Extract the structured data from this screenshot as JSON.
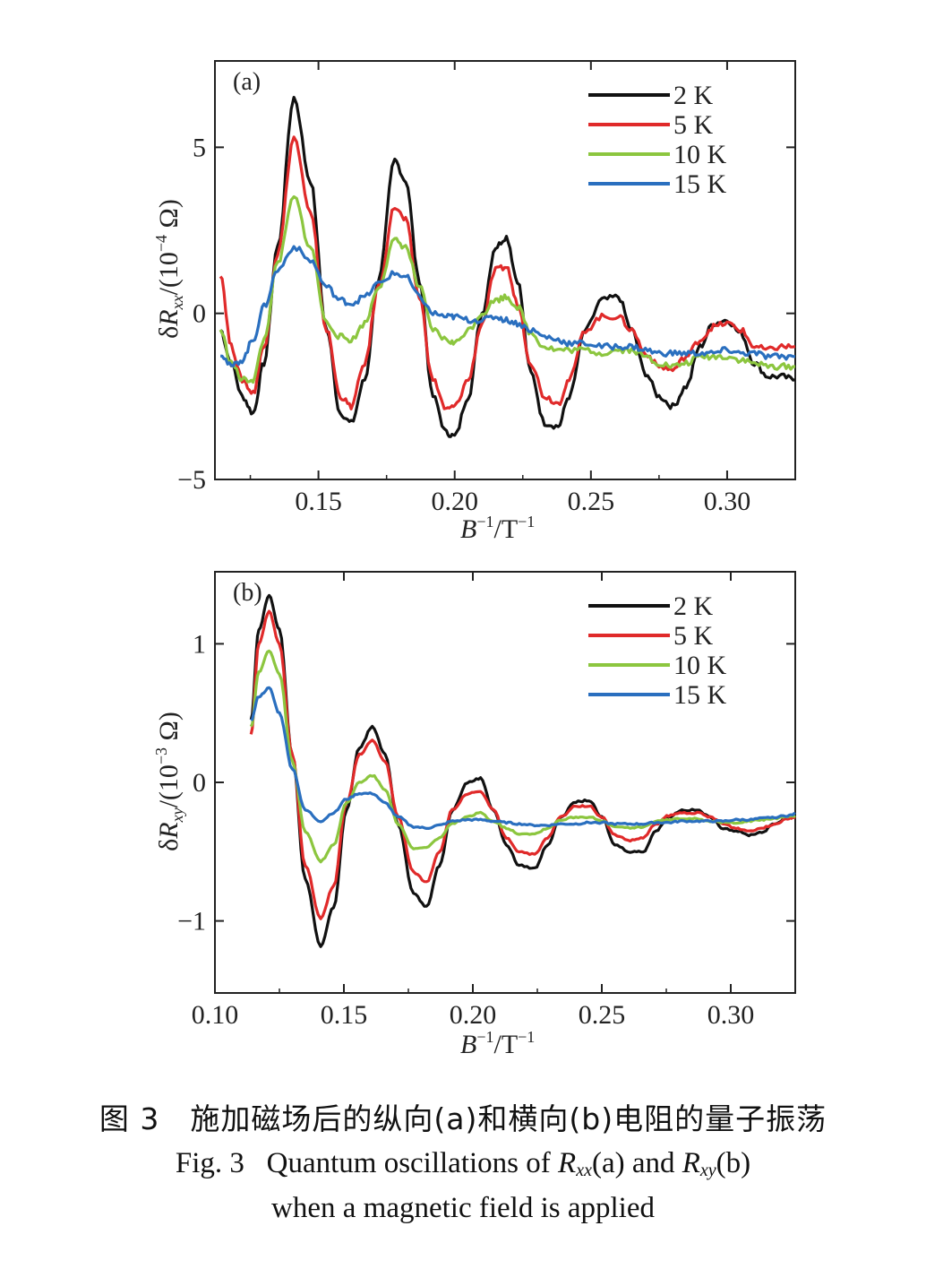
{
  "chart_data": [
    {
      "panel": "(a)",
      "type": "line",
      "xlabel_base": "B",
      "xlabel_sup": "−1",
      "xlabel_unit": "T",
      "xlabel_unit_sup": "−1",
      "ylabel_prefix": "δR",
      "ylabel_sub": "xx",
      "ylabel_suffix": "/(10",
      "ylabel_exp": "−4",
      "ylabel_unit": " Ω)",
      "xlim": [
        0.112,
        0.325
      ],
      "ylim": [
        -5,
        7.6
      ],
      "xticks": [
        0.15,
        0.2,
        0.25,
        0.3
      ],
      "xtick_labels": [
        "0.15",
        "0.20",
        "0.25",
        "0.30"
      ],
      "yticks": [
        -5,
        0,
        5
      ],
      "ytick_labels": [
        "−5",
        "0",
        "5"
      ],
      "legend_position": "top-right",
      "series": [
        {
          "name": "2 K",
          "color": "#111111",
          "x": [
            0.114,
            0.118,
            0.122,
            0.126,
            0.13,
            0.135,
            0.141,
            0.147,
            0.153,
            0.158,
            0.162,
            0.167,
            0.172,
            0.178,
            0.182,
            0.187,
            0.192,
            0.197,
            0.2,
            0.205,
            0.21,
            0.215,
            0.219,
            0.223,
            0.228,
            0.233,
            0.238,
            0.242,
            0.248,
            0.254,
            0.26,
            0.265,
            0.27,
            0.275,
            0.28,
            0.285,
            0.29,
            0.295,
            0.3,
            0.305,
            0.31,
            0.315,
            0.32,
            0.325
          ],
          "y": [
            -0.5,
            -1.5,
            -2.5,
            -3.0,
            -1.5,
            2.0,
            6.5,
            4.0,
            -0.5,
            -3.0,
            -3.3,
            -2.0,
            1.0,
            4.6,
            4.0,
            1.0,
            -2.5,
            -3.6,
            -3.7,
            -2.5,
            0.0,
            2.0,
            2.3,
            1.0,
            -1.8,
            -3.3,
            -3.4,
            -2.5,
            -0.5,
            0.4,
            0.5,
            -0.5,
            -1.8,
            -2.5,
            -2.8,
            -2.2,
            -1.0,
            -0.3,
            -0.2,
            -0.6,
            -1.5,
            -1.9,
            -1.9,
            -2.0
          ]
        },
        {
          "name": "5 K",
          "color": "#e02a2a",
          "x": [
            0.114,
            0.118,
            0.122,
            0.126,
            0.13,
            0.135,
            0.141,
            0.147,
            0.153,
            0.158,
            0.162,
            0.167,
            0.172,
            0.178,
            0.182,
            0.187,
            0.192,
            0.197,
            0.2,
            0.205,
            0.21,
            0.215,
            0.219,
            0.223,
            0.228,
            0.233,
            0.238,
            0.242,
            0.248,
            0.254,
            0.26,
            0.265,
            0.27,
            0.275,
            0.28,
            0.285,
            0.29,
            0.295,
            0.3,
            0.305,
            0.31,
            0.315,
            0.32,
            0.325
          ],
          "y": [
            1.2,
            -1.0,
            -2.0,
            -2.4,
            -1.0,
            1.8,
            5.3,
            3.0,
            -0.5,
            -2.5,
            -2.8,
            -1.5,
            0.8,
            3.2,
            2.8,
            0.5,
            -2.0,
            -2.9,
            -2.8,
            -2.0,
            -0.3,
            1.3,
            1.4,
            0.3,
            -1.5,
            -2.5,
            -2.7,
            -2.0,
            -0.5,
            -0.1,
            -0.1,
            -0.5,
            -1.2,
            -1.6,
            -1.7,
            -1.3,
            -0.8,
            -0.4,
            -0.3,
            -0.5,
            -1.0,
            -1.1,
            -1.0,
            -1.0
          ]
        },
        {
          "name": "10 K",
          "color": "#8cc63f",
          "x": [
            0.114,
            0.118,
            0.122,
            0.126,
            0.13,
            0.135,
            0.141,
            0.147,
            0.153,
            0.158,
            0.162,
            0.167,
            0.172,
            0.178,
            0.182,
            0.187,
            0.192,
            0.197,
            0.2,
            0.205,
            0.21,
            0.215,
            0.219,
            0.223,
            0.228,
            0.233,
            0.238,
            0.242,
            0.248,
            0.254,
            0.26,
            0.265,
            0.27,
            0.275,
            0.28,
            0.285,
            0.29,
            0.295,
            0.3,
            0.305,
            0.31,
            0.315,
            0.32,
            0.325
          ],
          "y": [
            -0.5,
            -1.5,
            -2.0,
            -2.0,
            -0.8,
            1.5,
            3.5,
            2.0,
            -0.3,
            -0.7,
            -0.8,
            -0.3,
            0.8,
            2.2,
            2.0,
            0.8,
            -0.5,
            -0.8,
            -0.9,
            -0.5,
            0.0,
            0.4,
            0.5,
            0.2,
            -0.6,
            -1.0,
            -1.1,
            -1.1,
            -1.1,
            -1.2,
            -1.1,
            -1.1,
            -1.3,
            -1.5,
            -1.6,
            -1.5,
            -1.3,
            -1.3,
            -1.3,
            -1.4,
            -1.5,
            -1.6,
            -1.6,
            -1.6
          ]
        },
        {
          "name": "15 K",
          "color": "#2a6fbf",
          "x": [
            0.114,
            0.118,
            0.122,
            0.126,
            0.13,
            0.135,
            0.141,
            0.147,
            0.153,
            0.158,
            0.162,
            0.167,
            0.172,
            0.178,
            0.182,
            0.187,
            0.192,
            0.197,
            0.2,
            0.205,
            0.21,
            0.215,
            0.219,
            0.223,
            0.228,
            0.233,
            0.238,
            0.242,
            0.248,
            0.254,
            0.26,
            0.265,
            0.27,
            0.275,
            0.28,
            0.285,
            0.29,
            0.295,
            0.3,
            0.305,
            0.31,
            0.315,
            0.32,
            0.325
          ],
          "y": [
            -1.2,
            -1.6,
            -1.4,
            -0.8,
            0.2,
            1.3,
            2.0,
            1.6,
            0.8,
            0.4,
            0.3,
            0.5,
            0.9,
            1.2,
            1.1,
            0.5,
            0.0,
            -0.1,
            -0.1,
            -0.2,
            -0.2,
            -0.1,
            -0.2,
            -0.3,
            -0.5,
            -0.7,
            -0.8,
            -0.9,
            -0.9,
            -1.0,
            -1.0,
            -1.0,
            -1.1,
            -1.2,
            -1.2,
            -1.2,
            -1.2,
            -1.2,
            -1.1,
            -1.2,
            -1.2,
            -1.3,
            -1.3,
            -1.3
          ]
        }
      ]
    },
    {
      "panel": "(b)",
      "type": "line",
      "xlabel_base": "B",
      "xlabel_sup": "−1",
      "xlabel_unit": "T",
      "xlabel_unit_sup": "−1",
      "ylabel_prefix": "δR",
      "ylabel_sub": "xy",
      "ylabel_suffix": "/(10",
      "ylabel_exp": "−3",
      "ylabel_unit": " Ω)",
      "xlim": [
        0.1,
        0.325
      ],
      "ylim": [
        -1.52,
        1.52
      ],
      "xticks": [
        0.1,
        0.15,
        0.2,
        0.25,
        0.3
      ],
      "xtick_labels": [
        "0.10",
        "0.15",
        "0.20",
        "0.25",
        "0.30"
      ],
      "yticks": [
        -1,
        0,
        1
      ],
      "ytick_labels": [
        "−1",
        "0",
        "1"
      ],
      "legend_position": "top-right",
      "series": [
        {
          "name": "2 K",
          "color": "#111111",
          "x": [
            0.114,
            0.117,
            0.121,
            0.125,
            0.13,
            0.135,
            0.141,
            0.146,
            0.151,
            0.156,
            0.161,
            0.166,
            0.171,
            0.177,
            0.182,
            0.187,
            0.192,
            0.198,
            0.203,
            0.208,
            0.213,
            0.218,
            0.224,
            0.229,
            0.234,
            0.24,
            0.245,
            0.25,
            0.255,
            0.261,
            0.266,
            0.271,
            0.276,
            0.281,
            0.287,
            0.292,
            0.297,
            0.302,
            0.307,
            0.312,
            0.317,
            0.322,
            0.325
          ],
          "y": [
            0.45,
            1.1,
            1.35,
            1.1,
            0.2,
            -0.7,
            -1.18,
            -0.9,
            -0.2,
            0.25,
            0.4,
            0.2,
            -0.3,
            -0.8,
            -0.9,
            -0.6,
            -0.2,
            0.0,
            0.03,
            -0.2,
            -0.45,
            -0.6,
            -0.62,
            -0.45,
            -0.25,
            -0.14,
            -0.13,
            -0.25,
            -0.45,
            -0.5,
            -0.5,
            -0.35,
            -0.25,
            -0.2,
            -0.2,
            -0.25,
            -0.33,
            -0.35,
            -0.38,
            -0.36,
            -0.3,
            -0.25,
            -0.25
          ]
        },
        {
          "name": "5 K",
          "color": "#e02a2a",
          "x": [
            0.114,
            0.117,
            0.121,
            0.125,
            0.13,
            0.135,
            0.141,
            0.146,
            0.151,
            0.156,
            0.161,
            0.166,
            0.171,
            0.177,
            0.182,
            0.187,
            0.192,
            0.198,
            0.203,
            0.208,
            0.213,
            0.218,
            0.224,
            0.229,
            0.234,
            0.24,
            0.245,
            0.25,
            0.255,
            0.261,
            0.266,
            0.271,
            0.276,
            0.281,
            0.287,
            0.292,
            0.297,
            0.302,
            0.307,
            0.312,
            0.317,
            0.322,
            0.325
          ],
          "y": [
            0.35,
            1.0,
            1.23,
            1.0,
            0.2,
            -0.6,
            -0.98,
            -0.75,
            -0.15,
            0.2,
            0.3,
            0.15,
            -0.25,
            -0.65,
            -0.72,
            -0.5,
            -0.2,
            -0.08,
            -0.07,
            -0.2,
            -0.4,
            -0.5,
            -0.52,
            -0.4,
            -0.25,
            -0.17,
            -0.17,
            -0.25,
            -0.38,
            -0.42,
            -0.4,
            -0.3,
            -0.24,
            -0.22,
            -0.22,
            -0.25,
            -0.3,
            -0.33,
            -0.35,
            -0.33,
            -0.3,
            -0.26,
            -0.25
          ]
        },
        {
          "name": "10 K",
          "color": "#8cc63f",
          "x": [
            0.114,
            0.117,
            0.121,
            0.125,
            0.13,
            0.135,
            0.141,
            0.146,
            0.151,
            0.156,
            0.161,
            0.166,
            0.171,
            0.177,
            0.182,
            0.187,
            0.192,
            0.198,
            0.203,
            0.208,
            0.213,
            0.218,
            0.224,
            0.229,
            0.234,
            0.24,
            0.245,
            0.25,
            0.255,
            0.261,
            0.266,
            0.271,
            0.276,
            0.281,
            0.287,
            0.292,
            0.297,
            0.302,
            0.307,
            0.312,
            0.317,
            0.322,
            0.325
          ],
          "y": [
            0.4,
            0.8,
            0.95,
            0.78,
            0.15,
            -0.35,
            -0.57,
            -0.45,
            -0.15,
            0.0,
            0.05,
            -0.05,
            -0.3,
            -0.48,
            -0.47,
            -0.4,
            -0.3,
            -0.25,
            -0.22,
            -0.28,
            -0.33,
            -0.37,
            -0.37,
            -0.33,
            -0.27,
            -0.25,
            -0.25,
            -0.28,
            -0.32,
            -0.33,
            -0.32,
            -0.28,
            -0.27,
            -0.26,
            -0.26,
            -0.28,
            -0.29,
            -0.29,
            -0.28,
            -0.27,
            -0.26,
            -0.25,
            -0.24
          ]
        },
        {
          "name": "15 K",
          "color": "#2a6fbf",
          "x": [
            0.114,
            0.117,
            0.121,
            0.125,
            0.13,
            0.135,
            0.141,
            0.146,
            0.151,
            0.156,
            0.161,
            0.166,
            0.171,
            0.177,
            0.182,
            0.187,
            0.192,
            0.198,
            0.203,
            0.208,
            0.213,
            0.218,
            0.224,
            0.229,
            0.234,
            0.24,
            0.245,
            0.25,
            0.255,
            0.261,
            0.266,
            0.271,
            0.276,
            0.281,
            0.287,
            0.292,
            0.297,
            0.302,
            0.307,
            0.312,
            0.317,
            0.322,
            0.325
          ],
          "y": [
            0.45,
            0.62,
            0.68,
            0.5,
            0.1,
            -0.2,
            -0.28,
            -0.22,
            -0.12,
            -0.08,
            -0.08,
            -0.15,
            -0.25,
            -0.32,
            -0.33,
            -0.31,
            -0.28,
            -0.27,
            -0.27,
            -0.28,
            -0.29,
            -0.3,
            -0.31,
            -0.31,
            -0.3,
            -0.3,
            -0.29,
            -0.29,
            -0.3,
            -0.3,
            -0.3,
            -0.29,
            -0.29,
            -0.28,
            -0.28,
            -0.28,
            -0.28,
            -0.27,
            -0.27,
            -0.26,
            -0.25,
            -0.24,
            -0.23
          ]
        }
      ]
    }
  ],
  "caption": {
    "cn": "图 3　施加磁场后的纵向(a)和横向(b)电阻的量子振荡",
    "en_fig": "Fig. 3",
    "en_text1": "Quantum oscillations of",
    "en_r": "R",
    "en_sub_xx": "xx",
    "en_part_a": "(a) and",
    "en_sub_xy": "xy",
    "en_part_b": "(b)",
    "en_line2": "when a magnetic field is applied"
  }
}
